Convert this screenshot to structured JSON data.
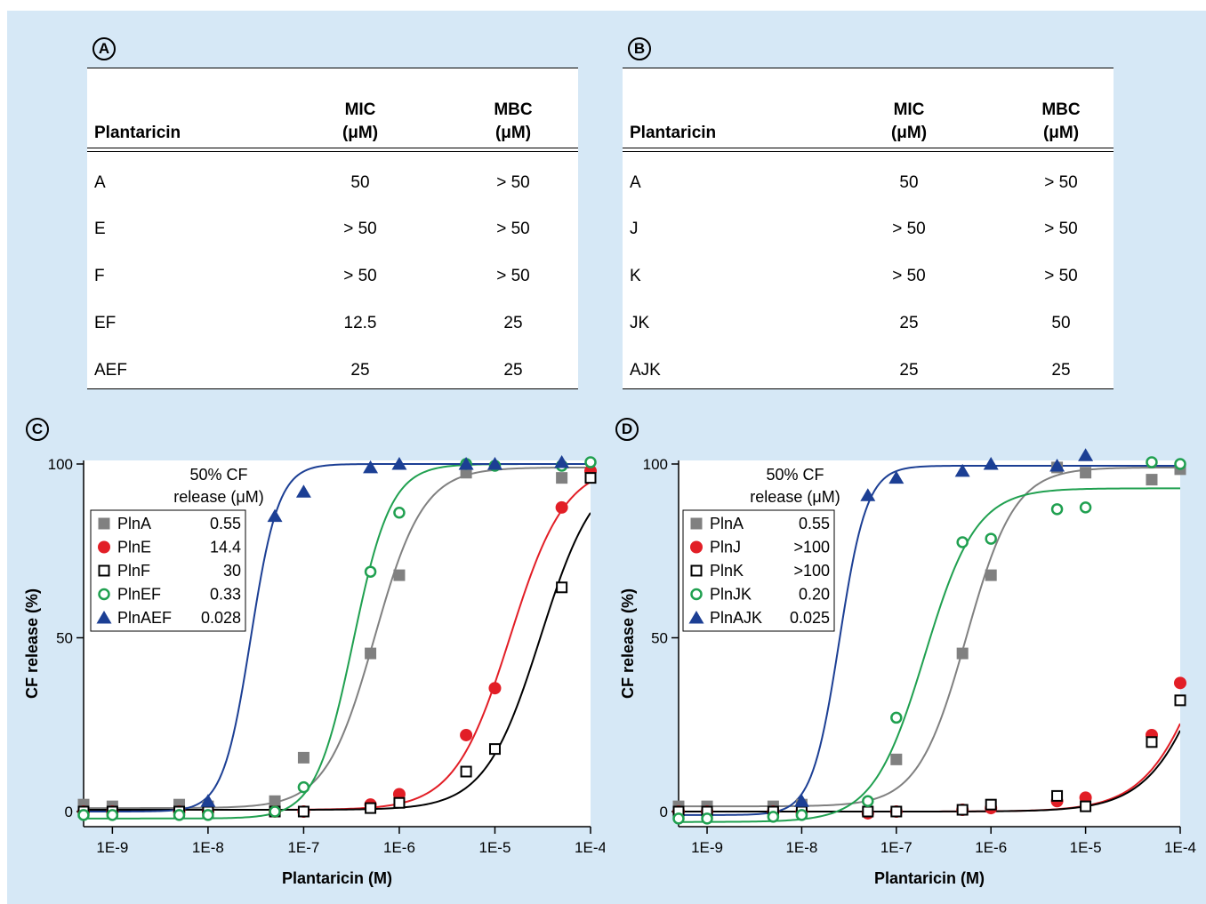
{
  "panels": {
    "A": {
      "label": "A",
      "table": {
        "headers": {
          "name": "Plantaricin",
          "mic_line1": "MIC",
          "mic_line2": "(μM)",
          "mbc_line1": "MBC",
          "mbc_line2": "(μM)"
        },
        "rows": [
          {
            "name": "A",
            "mic": "50",
            "mbc": "> 50"
          },
          {
            "name": "E",
            "mic": "> 50",
            "mbc": "> 50"
          },
          {
            "name": "F",
            "mic": "> 50",
            "mbc": "> 50"
          },
          {
            "name": "EF",
            "mic": "12.5",
            "mbc": "25"
          },
          {
            "name": "AEF",
            "mic": "25",
            "mbc": "25"
          }
        ]
      }
    },
    "B": {
      "label": "B",
      "table": {
        "headers": {
          "name": "Plantaricin",
          "mic_line1": "MIC",
          "mic_line2": "(μM)",
          "mbc_line1": "MBC",
          "mbc_line2": "(μM)"
        },
        "rows": [
          {
            "name": "A",
            "mic": "50",
            "mbc": "> 50"
          },
          {
            "name": "J",
            "mic": "> 50",
            "mbc": "> 50"
          },
          {
            "name": "K",
            "mic": "> 50",
            "mbc": "> 50"
          },
          {
            "name": "JK",
            "mic": "25",
            "mbc": "50"
          },
          {
            "name": "AJK",
            "mic": "25",
            "mbc": "25"
          }
        ]
      }
    },
    "C": {
      "label": "C"
    },
    "D": {
      "label": "D"
    }
  },
  "chart_data": [
    {
      "panel": "C",
      "type": "scatter",
      "xlabel": "Plantaricin (M)",
      "ylabel": "CF release (%)",
      "x_scale": "log",
      "xlim": [
        5e-10,
        0.0001
      ],
      "ylim": [
        -3,
        100
      ],
      "x_ticks": [
        "1E-9",
        "1E-8",
        "1E-7",
        "1E-6",
        "1E-5",
        "1E-4"
      ],
      "y_ticks": [
        "0",
        "50",
        "100"
      ],
      "legend_title": [
        "50% CF",
        "release (μM)"
      ],
      "legend_position": "top-left",
      "series": [
        {
          "name": "PlnA",
          "ec50_label": "0.55",
          "marker": "square-filled",
          "color": "#808080",
          "fit_top": 99,
          "fit_bottom": 1,
          "fit_ec50": 5.5e-07,
          "fit_slope": 1.7,
          "x": [
            5e-10,
            1e-09,
            5e-09,
            1e-08,
            5e-08,
            1e-07,
            5e-07,
            1e-06,
            5e-06,
            5e-05,
            0.0001
          ],
          "y": [
            2,
            1.5,
            2,
            1.5,
            3,
            15.5,
            45.5,
            68,
            97.5,
            96,
            96.5
          ]
        },
        {
          "name": "PlnE",
          "ec50_label": "14.4",
          "marker": "circle-filled",
          "color": "#e21e26",
          "fit_top": 100,
          "fit_bottom": 0.5,
          "fit_ec50": 1.44e-05,
          "fit_slope": 1.5,
          "x": [
            5e-10,
            1e-09,
            5e-09,
            1e-08,
            5e-08,
            1e-07,
            5e-07,
            1e-06,
            5e-06,
            1e-05,
            5e-05,
            0.0001
          ],
          "y": [
            0,
            0,
            0,
            0,
            0,
            0,
            2,
            5,
            22,
            35.5,
            87.5,
            98
          ]
        },
        {
          "name": "PlnF",
          "ec50_label": "30",
          "marker": "square-open",
          "color": "#000000",
          "fit_top": 100,
          "fit_bottom": 0.5,
          "fit_ec50": 3e-05,
          "fit_slope": 1.5,
          "x": [
            5e-10,
            1e-09,
            5e-09,
            1e-08,
            5e-08,
            1e-07,
            5e-07,
            1e-06,
            5e-06,
            1e-05,
            5e-05,
            0.0001
          ],
          "y": [
            0,
            0,
            0,
            0,
            0,
            0,
            1,
            2.5,
            11.5,
            18,
            64.5,
            96
          ]
        },
        {
          "name": "PlnEF",
          "ec50_label": "0.33",
          "marker": "circle-open",
          "color": "#20a050",
          "fit_top": 100,
          "fit_bottom": -2,
          "fit_ec50": 3.3e-07,
          "fit_slope": 2.2,
          "x": [
            5e-10,
            1e-09,
            5e-09,
            1e-08,
            5e-08,
            1e-07,
            5e-07,
            1e-06,
            5e-06,
            1e-05,
            5e-05,
            0.0001
          ],
          "y": [
            -1,
            -1,
            -1,
            -1,
            0,
            7,
            69,
            86,
            100,
            99.5,
            99.5,
            100.5
          ]
        },
        {
          "name": "PlnAEF",
          "ec50_label": "0.028",
          "marker": "triangle-filled",
          "color": "#1c3f94",
          "fit_top": 100,
          "fit_bottom": 0,
          "fit_ec50": 2.8e-08,
          "fit_slope": 3,
          "x": [
            1e-08,
            5e-08,
            1e-07,
            5e-07,
            1e-06,
            5e-06,
            1e-05,
            5e-05
          ],
          "y": [
            3,
            85,
            92,
            99,
            100,
            100,
            100,
            100.5
          ]
        }
      ]
    },
    {
      "panel": "D",
      "type": "scatter",
      "xlabel": "Plantaricin (M)",
      "ylabel": "CF release (%)",
      "x_scale": "log",
      "xlim": [
        5e-10,
        0.0001
      ],
      "ylim": [
        -3,
        100
      ],
      "x_ticks": [
        "1E-9",
        "1E-8",
        "1E-7",
        "1E-6",
        "1E-5",
        "1E-4"
      ],
      "y_ticks": [
        "0",
        "50",
        "100"
      ],
      "legend_title": [
        "50% CF",
        "release (μM)"
      ],
      "legend_position": "top-left",
      "series": [
        {
          "name": "PlnA",
          "ec50_label": "0.55",
          "marker": "square-filled",
          "color": "#808080",
          "fit_top": 99,
          "fit_bottom": 1.5,
          "fit_ec50": 5.5e-07,
          "fit_slope": 1.7,
          "x": [
            5e-10,
            1e-09,
            5e-09,
            1e-08,
            1e-07,
            5e-07,
            1e-06,
            5e-06,
            1e-05,
            5e-05,
            0.0001
          ],
          "y": [
            1.5,
            1.5,
            1.5,
            2,
            15,
            45.5,
            68,
            99,
            97.5,
            95.5,
            98.5
          ]
        },
        {
          "name": "PlnJ",
          "ec50_label": ">100",
          "marker": "circle-filled",
          "color": "#e21e26",
          "fit_top": 100,
          "fit_bottom": 0,
          "fit_ec50": 0.00023,
          "fit_slope": 1.3,
          "x": [
            5e-10,
            1e-09,
            5e-09,
            1e-08,
            5e-08,
            1e-07,
            5e-07,
            1e-06,
            5e-06,
            1e-05,
            5e-05,
            0.0001
          ],
          "y": [
            0,
            0,
            0,
            0,
            -0.5,
            0,
            0.5,
            1,
            3,
            4,
            22,
            37
          ]
        },
        {
          "name": "PlnK",
          "ec50_label": ">100",
          "marker": "square-open",
          "color": "#000000",
          "fit_top": 100,
          "fit_bottom": 0,
          "fit_ec50": 0.00025,
          "fit_slope": 1.3,
          "x": [
            5e-10,
            1e-09,
            5e-09,
            1e-08,
            5e-08,
            1e-07,
            5e-07,
            1e-06,
            5e-06,
            1e-05,
            5e-05,
            0.0001
          ],
          "y": [
            0,
            0,
            0,
            0,
            0,
            0,
            0.5,
            2,
            4.5,
            1.5,
            20,
            32
          ]
        },
        {
          "name": "PlnJK",
          "ec50_label": "0.20",
          "marker": "circle-open",
          "color": "#20a050",
          "fit_top": 93,
          "fit_bottom": -3,
          "fit_ec50": 2e-07,
          "fit_slope": 1.6,
          "x": [
            5e-10,
            1e-09,
            5e-09,
            1e-08,
            5e-08,
            1e-07,
            5e-07,
            1e-06,
            5e-06,
            1e-05,
            5e-05,
            0.0001
          ],
          "y": [
            -2,
            -2,
            -1.5,
            -1,
            3,
            27,
            77.5,
            78.5,
            87,
            87.5,
            100.5,
            100
          ]
        },
        {
          "name": "PlnAJK",
          "ec50_label": "0.025",
          "marker": "triangle-filled",
          "color": "#1c3f94",
          "fit_top": 99.5,
          "fit_bottom": -1,
          "fit_ec50": 2.5e-08,
          "fit_slope": 3,
          "x": [
            1e-08,
            5e-08,
            1e-07,
            5e-07,
            1e-06,
            5e-06,
            1e-05
          ],
          "y": [
            3,
            91,
            96,
            98,
            100,
            99.5,
            102.5
          ]
        }
      ]
    }
  ]
}
